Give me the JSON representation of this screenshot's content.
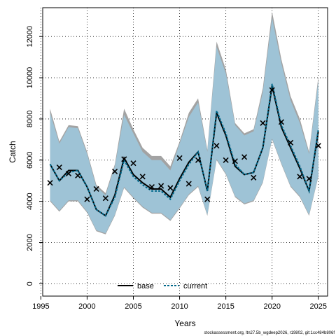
{
  "chart_data": {
    "type": "line",
    "xlabel": "Years",
    "ylabel": "Catch",
    "xlim": [
      1995.2,
      2026.0
    ],
    "ylim": [
      -600,
      13400
    ],
    "xticks": [
      1995,
      2000,
      2005,
      2010,
      2015,
      2020,
      2025
    ],
    "yticks": [
      0,
      2000,
      4000,
      6000,
      8000,
      10000,
      12000
    ],
    "grid": true,
    "legend": {
      "placement": "bottom-center",
      "entries": [
        {
          "label": "base",
          "style": "solid",
          "color": "#000000"
        },
        {
          "label": "current",
          "style": "dashed",
          "color": "#00688b"
        }
      ]
    },
    "colors": {
      "outer_band": "#a3a3a3",
      "inner_band": "#9ec5d9",
      "base_line": "#000000",
      "current_line": "#00688b",
      "points": "#000000"
    },
    "x": [
      1996,
      1997,
      1998,
      1999,
      2000,
      2001,
      2002,
      2003,
      2004,
      2005,
      2006,
      2007,
      2008,
      2009,
      2010,
      2011,
      2012,
      2013,
      2014,
      2015,
      2016,
      2017,
      2018,
      2019,
      2020,
      2021,
      2022,
      2023,
      2024,
      2025
    ],
    "series": [
      {
        "name": "base",
        "role": "line",
        "values": [
          5800,
          5000,
          5500,
          5500,
          4700,
          3600,
          3300,
          4300,
          6100,
          5300,
          4900,
          4600,
          4600,
          4200,
          5100,
          5900,
          6400,
          4500,
          8300,
          7200,
          5700,
          5300,
          5400,
          6600,
          9600,
          7600,
          6600,
          5600,
          4500,
          7400
        ]
      },
      {
        "name": "current",
        "role": "line",
        "values": [
          5800,
          5000,
          5400,
          5500,
          4700,
          3600,
          3300,
          4200,
          6000,
          5200,
          4800,
          4500,
          4500,
          4100,
          5000,
          5800,
          6400,
          4500,
          8400,
          7300,
          5800,
          5300,
          5400,
          6600,
          9700,
          7700,
          6700,
          5700,
          4500,
          7500
        ]
      },
      {
        "name": "observed",
        "role": "points",
        "values": [
          4900,
          5650,
          5350,
          5250,
          4100,
          4600,
          4150,
          5450,
          6050,
          5850,
          5200,
          4700,
          4750,
          4650,
          6100,
          4850,
          6000,
          4100,
          6700,
          6000,
          5950,
          6150,
          5150,
          7800,
          9400,
          7850,
          6850,
          5200,
          5100,
          6700
        ]
      },
      {
        "name": "base_upper",
        "role": "band-outer-upper",
        "values": [
          8500,
          6900,
          7700,
          7650,
          6400,
          4800,
          4400,
          5800,
          8500,
          7500,
          6600,
          6200,
          6200,
          5700,
          6900,
          8300,
          9000,
          6500,
          11750,
          10400,
          7800,
          7300,
          7500,
          9500,
          13200,
          10900,
          9100,
          8000,
          6400,
          10050
        ]
      },
      {
        "name": "base_lower",
        "role": "band-outer-lower",
        "values": [
          4000,
          3500,
          4000,
          4000,
          3450,
          2550,
          2400,
          3300,
          4650,
          4150,
          3700,
          3400,
          3400,
          3050,
          3650,
          4300,
          4700,
          3300,
          6000,
          5300,
          4200,
          3850,
          4000,
          4900,
          7000,
          5800,
          4700,
          4200,
          3300,
          5200
        ]
      },
      {
        "name": "current_upper",
        "role": "band-inner-upper",
        "values": [
          8300,
          6800,
          7600,
          7550,
          6300,
          4700,
          4300,
          5700,
          8200,
          7300,
          6400,
          6000,
          6000,
          5500,
          6800,
          8100,
          8800,
          6400,
          11500,
          10200,
          7700,
          7200,
          7400,
          9300,
          12900,
          10700,
          8900,
          7800,
          6300,
          9850
        ]
      },
      {
        "name": "current_lower",
        "role": "band-inner-lower",
        "values": [
          4050,
          3550,
          4050,
          4050,
          3500,
          2600,
          2450,
          3350,
          4700,
          4200,
          3750,
          3450,
          3450,
          3100,
          3700,
          4350,
          4750,
          3350,
          6050,
          5350,
          4250,
          3900,
          4050,
          4950,
          7050,
          5850,
          4750,
          4250,
          3350,
          5250
        ]
      }
    ],
    "footnote": "stockassessment.org, ltn27.5b_wgdeep2026, r19802, git:1cc484b806f"
  }
}
